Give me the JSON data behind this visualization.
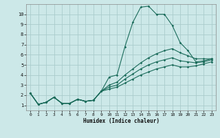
{
  "title": "",
  "xlabel": "Humidex (Indice chaleur)",
  "bg_color": "#cce8e8",
  "grid_color": "#aacccc",
  "line_color": "#1a6b5a",
  "xlim": [
    -0.5,
    23.5
  ],
  "ylim": [
    0.5,
    11.0
  ],
  "xticks": [
    0,
    1,
    2,
    3,
    4,
    5,
    6,
    7,
    8,
    9,
    10,
    11,
    12,
    13,
    14,
    15,
    16,
    17,
    18,
    19,
    20,
    21,
    22,
    23
  ],
  "yticks": [
    1,
    2,
    3,
    4,
    5,
    6,
    7,
    8,
    9,
    10
  ],
  "series": [
    [
      2.2,
      1.1,
      1.3,
      1.8,
      1.2,
      1.2,
      1.6,
      1.4,
      1.5,
      2.4,
      3.8,
      4.0,
      6.8,
      9.2,
      10.7,
      10.8,
      10.0,
      10.0,
      8.9,
      7.2,
      6.4,
      5.3,
      5.4,
      5.6
    ],
    [
      2.2,
      1.1,
      1.3,
      1.8,
      1.2,
      1.2,
      1.6,
      1.4,
      1.5,
      2.4,
      3.0,
      3.3,
      4.0,
      4.6,
      5.2,
      5.7,
      6.1,
      6.4,
      6.6,
      6.2,
      5.9,
      5.6,
      5.6,
      5.6
    ],
    [
      2.2,
      1.1,
      1.3,
      1.8,
      1.2,
      1.2,
      1.6,
      1.4,
      1.5,
      2.4,
      2.8,
      3.0,
      3.6,
      4.1,
      4.6,
      5.0,
      5.3,
      5.5,
      5.7,
      5.4,
      5.3,
      5.2,
      5.3,
      5.5
    ],
    [
      2.2,
      1.1,
      1.3,
      1.8,
      1.2,
      1.2,
      1.6,
      1.4,
      1.5,
      2.4,
      2.6,
      2.8,
      3.2,
      3.6,
      4.0,
      4.3,
      4.6,
      4.8,
      5.0,
      4.8,
      4.8,
      4.9,
      5.1,
      5.3
    ]
  ]
}
